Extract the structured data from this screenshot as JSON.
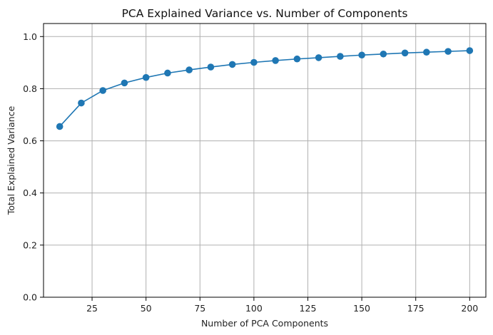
{
  "chart_data": {
    "type": "line",
    "title": "PCA Explained Variance vs. Number of Components",
    "xlabel": "Number of PCA Components",
    "ylabel": "Total Explained Variance",
    "xlim": [
      2.5,
      207.5
    ],
    "ylim": [
      0.0,
      1.05
    ],
    "x_ticks": [
      25,
      50,
      75,
      100,
      125,
      150,
      175,
      200
    ],
    "y_ticks": [
      0.0,
      0.2,
      0.4,
      0.6,
      0.8,
      1.0
    ],
    "x_tick_labels": [
      "25",
      "50",
      "75",
      "100",
      "125",
      "150",
      "175",
      "200"
    ],
    "y_tick_labels": [
      "0.0",
      "0.2",
      "0.4",
      "0.6",
      "0.8",
      "1.0"
    ],
    "grid": true,
    "series": [
      {
        "color": "#1f77b4",
        "marker": "circle",
        "x": [
          10,
          20,
          30,
          40,
          50,
          60,
          70,
          80,
          90,
          100,
          110,
          120,
          130,
          140,
          150,
          160,
          170,
          180,
          190,
          200
        ],
        "y": [
          0.655,
          0.745,
          0.793,
          0.822,
          0.843,
          0.86,
          0.872,
          0.883,
          0.893,
          0.901,
          0.908,
          0.914,
          0.919,
          0.924,
          0.929,
          0.933,
          0.937,
          0.94,
          0.943,
          0.946
        ]
      }
    ],
    "grid_color": "#b0b0b0",
    "axis_color": "#000000"
  }
}
